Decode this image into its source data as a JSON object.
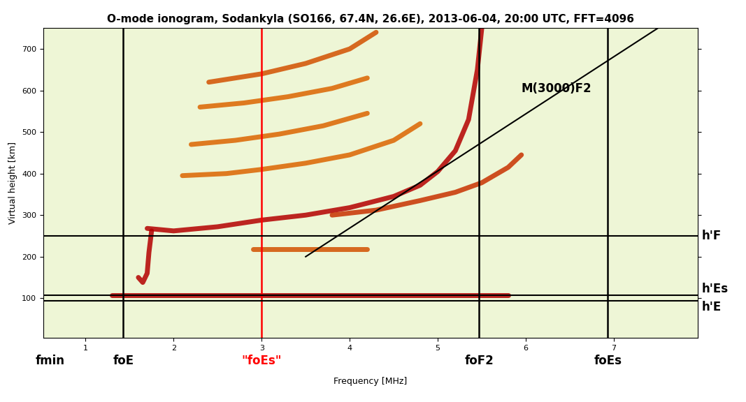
{
  "chart_data": {
    "type": "ionogram",
    "title": "O-mode ionogram, Sodankyla (SO166, 67.4N, 26.6E), 2013-06-04, 20:00 UTC, FFT=4096",
    "x_label": "Frequency [MHz]",
    "y_label": "Virtual height [km]",
    "xlim": [
      0.52,
      7.95
    ],
    "ylim": [
      5,
      750
    ],
    "xticks": [
      1,
      2,
      3,
      4,
      5,
      6,
      7
    ],
    "yticks": [
      100,
      200,
      300,
      400,
      500,
      600,
      700
    ],
    "series": [
      {
        "color": "#b40000",
        "x": [
          1.6,
          1.65,
          1.7,
          1.72,
          1.75
        ],
        "values": [
          150,
          138,
          160,
          210,
          262
        ]
      },
      {
        "color": "#b40000",
        "x": [
          1.7,
          2,
          2.5,
          3,
          3.5,
          4,
          4.5,
          4.8,
          5,
          5.2,
          5.35,
          5.45,
          5.5
        ],
        "values": [
          268,
          262,
          272,
          288,
          300,
          318,
          345,
          372,
          405,
          455,
          530,
          650,
          750
        ]
      },
      {
        "color": "#c83200",
        "x": [
          3.8,
          4.3,
          4.8,
          5.2,
          5.5,
          5.8,
          5.95
        ],
        "values": [
          300,
          312,
          335,
          355,
          378,
          415,
          445
        ]
      },
      {
        "color": "#b40000",
        "x": [
          1.3,
          5.8
        ],
        "values": [
          108,
          108
        ]
      },
      {
        "color": "#d25000",
        "x": [
          2.9,
          4.2
        ],
        "values": [
          218,
          218
        ]
      },
      {
        "color": "#dc6400",
        "x": [
          2.1,
          2.6,
          3,
          3.5,
          4,
          4.5,
          4.8
        ],
        "values": [
          395,
          400,
          410,
          425,
          445,
          480,
          520
        ]
      },
      {
        "color": "#dc6400",
        "x": [
          2.2,
          2.7,
          3.2,
          3.7,
          4.2
        ],
        "values": [
          470,
          480,
          495,
          515,
          545
        ]
      },
      {
        "color": "#dc6400",
        "x": [
          2.3,
          2.8,
          3.3,
          3.8,
          4.2
        ],
        "values": [
          560,
          570,
          585,
          605,
          630
        ]
      },
      {
        "color": "#d25000",
        "x": [
          2.4,
          3,
          3.5,
          4,
          4.3
        ],
        "values": [
          620,
          640,
          665,
          700,
          740
        ]
      }
    ],
    "vertical_lines": [
      {
        "label": "fmin",
        "x": 0.6,
        "color": "black",
        "line_style": "none"
      },
      {
        "label": "foE",
        "x": 1.43,
        "color": "black",
        "line_style": "solid"
      },
      {
        "label": "\"foEs\"",
        "x": 3.0,
        "color": "red",
        "line_style": "solid"
      },
      {
        "label": "foF2",
        "x": 5.47,
        "color": "black",
        "line_style": "solid"
      },
      {
        "label": "foEs",
        "x": 6.93,
        "color": "black",
        "line_style": "solid"
      }
    ],
    "horizontal_lines": [
      {
        "label": "h'F",
        "y": 250,
        "color": "black"
      },
      {
        "label": "h'Es",
        "y": 108,
        "color": "black"
      },
      {
        "label": "h'E",
        "y": 94,
        "color": "black"
      }
    ],
    "annotations": [
      {
        "text": "M(3000)F2",
        "x": [
          3.5,
          7.5
        ],
        "values": [
          200,
          750
        ],
        "text_x": 5.95,
        "text_y": 590,
        "color": "black"
      }
    ]
  }
}
